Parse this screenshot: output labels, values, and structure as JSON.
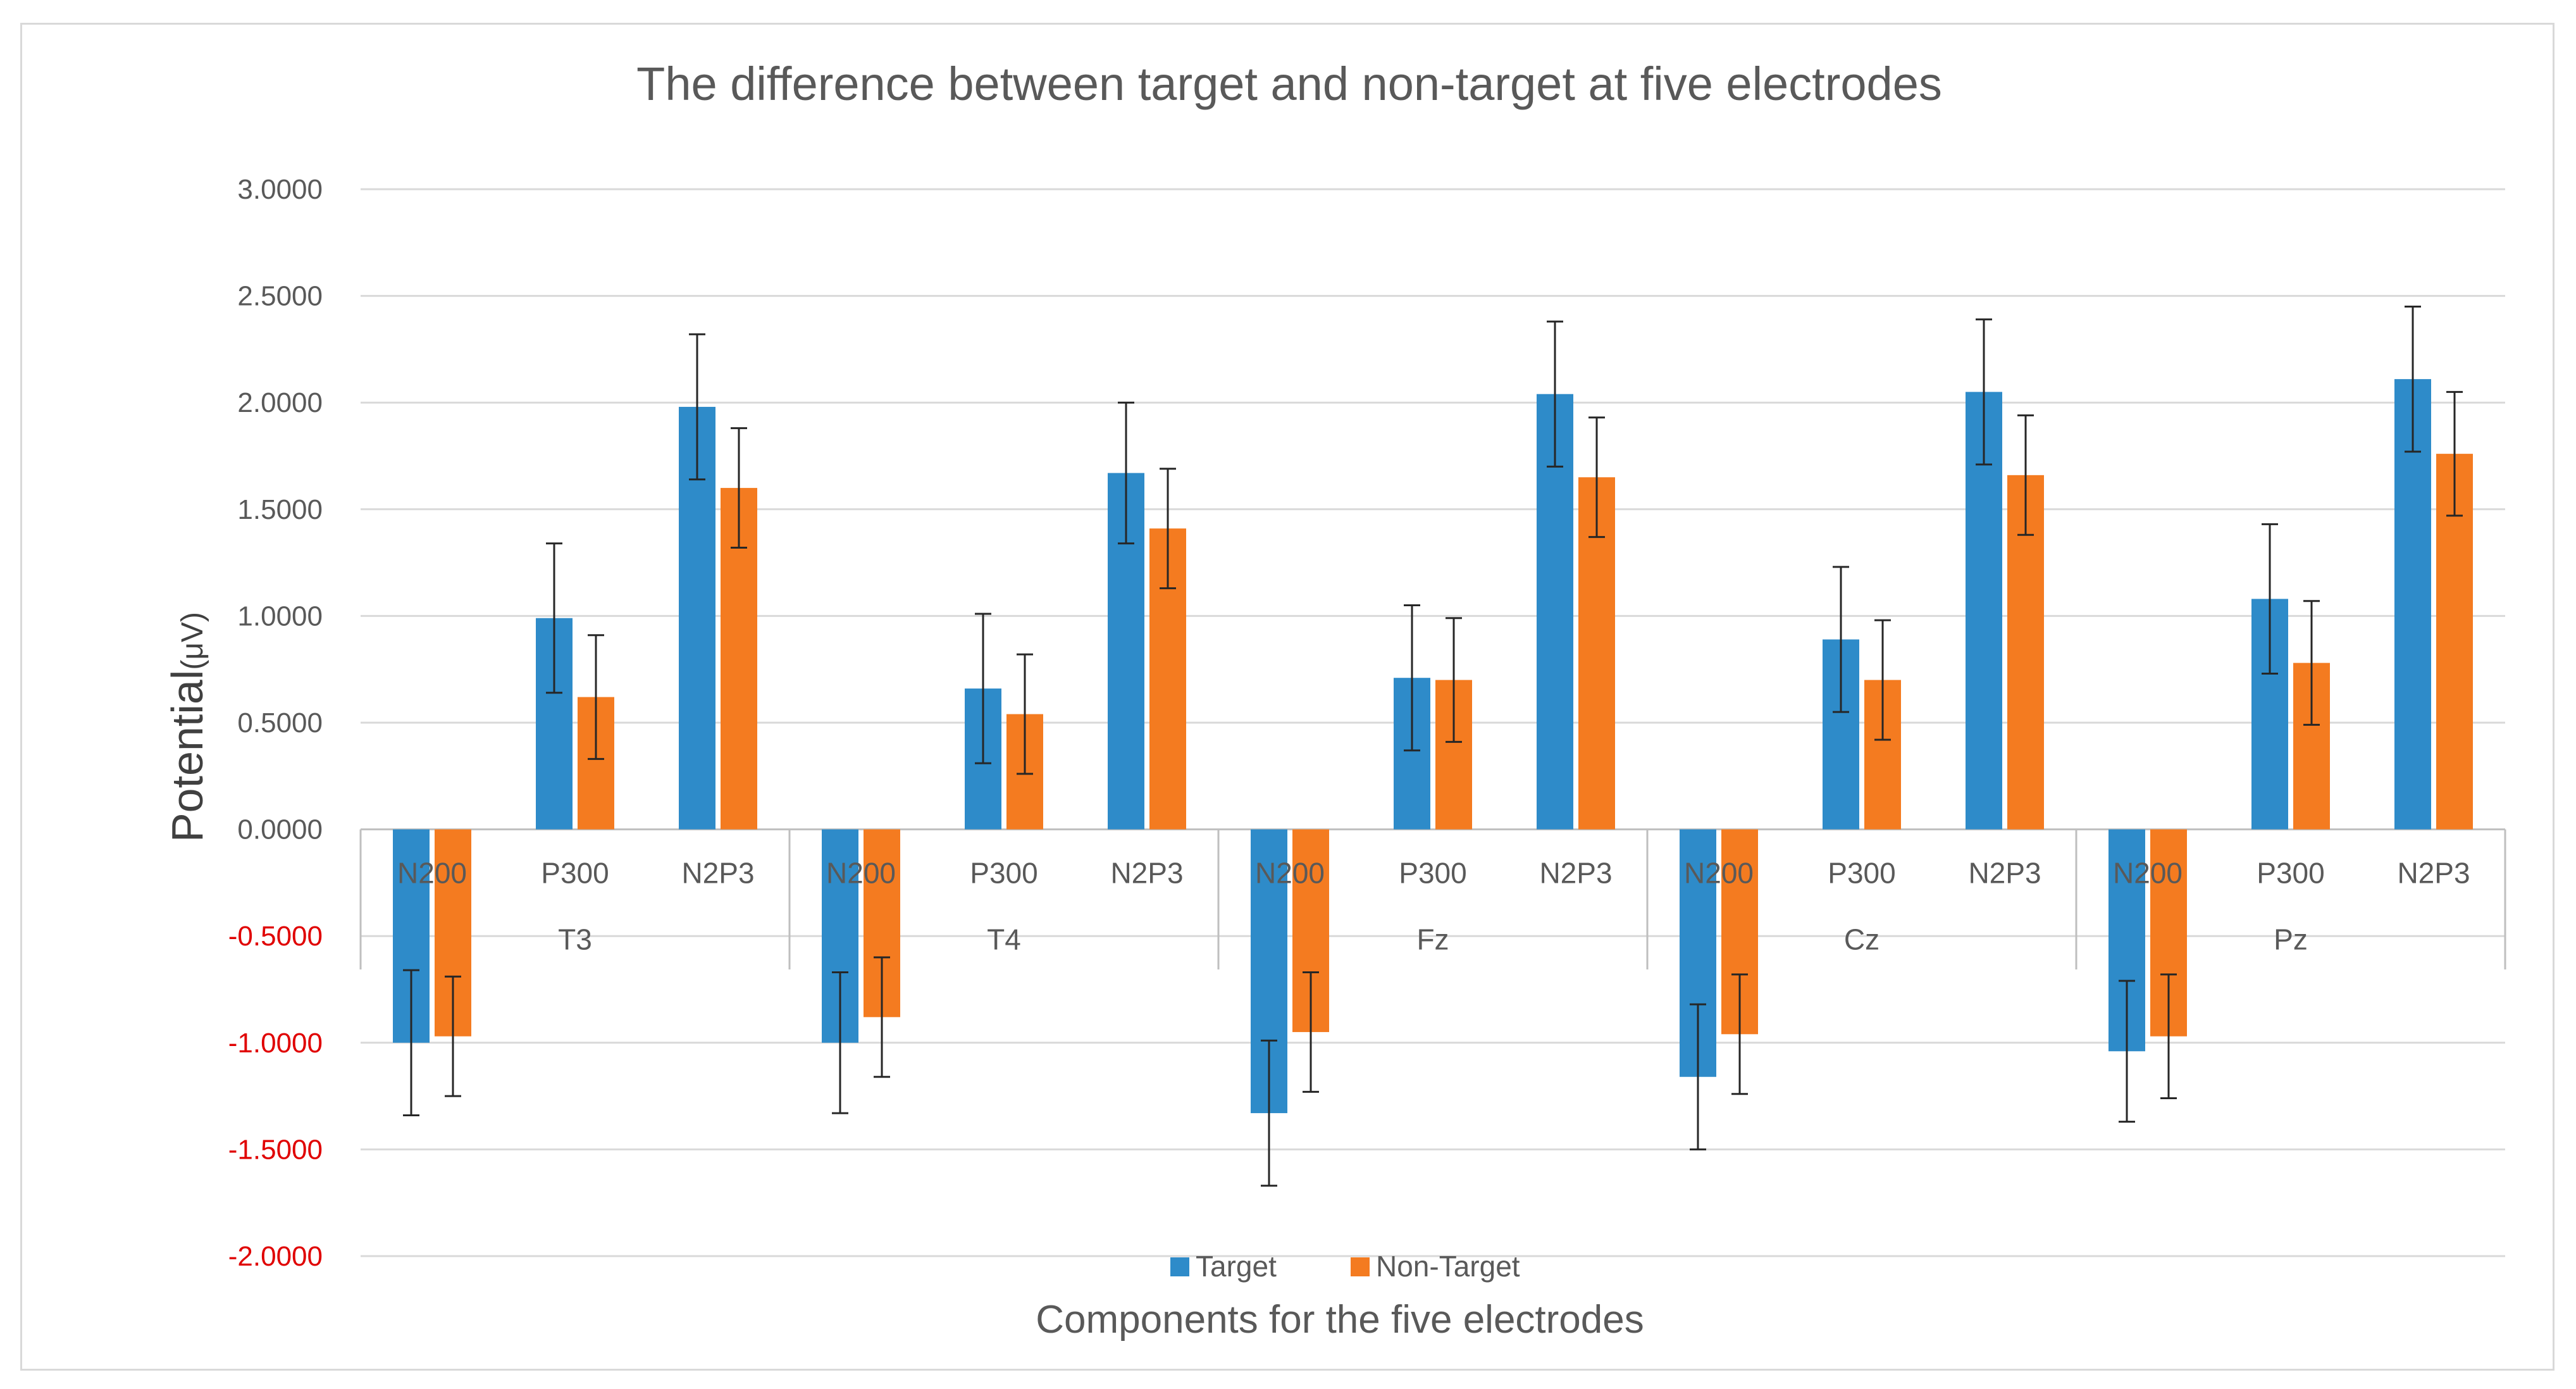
{
  "chart_data": {
    "type": "bar",
    "title": "The difference between target and non-target  at five electrodes",
    "xlabel": "Components  for the five electrodes",
    "ylabel_main": "Potential",
    "ylabel_unit": "(μV)",
    "ylim": [
      -2.0,
      3.0
    ],
    "ytick_step": 0.5,
    "ytick_labels": [
      "3.0000",
      "2.5000",
      "2.0000",
      "1.5000",
      "1.0000",
      "0.5000",
      "0.0000",
      "-0.5000",
      "-1.0000",
      "-1.5000",
      "-2.0000"
    ],
    "groups": [
      "T3",
      "T4",
      "Fz",
      "Cz",
      "Pz"
    ],
    "components": [
      "N200",
      "P300",
      "N2P3"
    ],
    "legend_position": "bottom",
    "series": [
      {
        "name": "Target",
        "color": "#2E8BC9",
        "values": [
          -1.0,
          0.99,
          1.98,
          -1.0,
          0.66,
          1.67,
          -1.33,
          0.71,
          2.04,
          -1.16,
          0.89,
          2.05,
          -1.04,
          1.08,
          2.11
        ],
        "errors": [
          0.34,
          0.35,
          0.34,
          0.33,
          0.35,
          0.33,
          0.34,
          0.34,
          0.34,
          0.34,
          0.34,
          0.34,
          0.33,
          0.35,
          0.34
        ]
      },
      {
        "name": "Non-Target",
        "color": "#F47B20",
        "values": [
          -0.97,
          0.62,
          1.6,
          -0.88,
          0.54,
          1.41,
          -0.95,
          0.7,
          1.65,
          -0.96,
          0.7,
          1.66,
          -0.97,
          0.78,
          1.76
        ],
        "errors": [
          0.28,
          0.29,
          0.28,
          0.28,
          0.28,
          0.28,
          0.28,
          0.29,
          0.28,
          0.28,
          0.28,
          0.28,
          0.29,
          0.29,
          0.29
        ]
      }
    ],
    "colors": {
      "positive_tick": "#595959",
      "negative_tick": "#E00000",
      "grid": "#D9D9D9",
      "axis": "#BFBFBF",
      "error_bar": "#262626"
    }
  }
}
